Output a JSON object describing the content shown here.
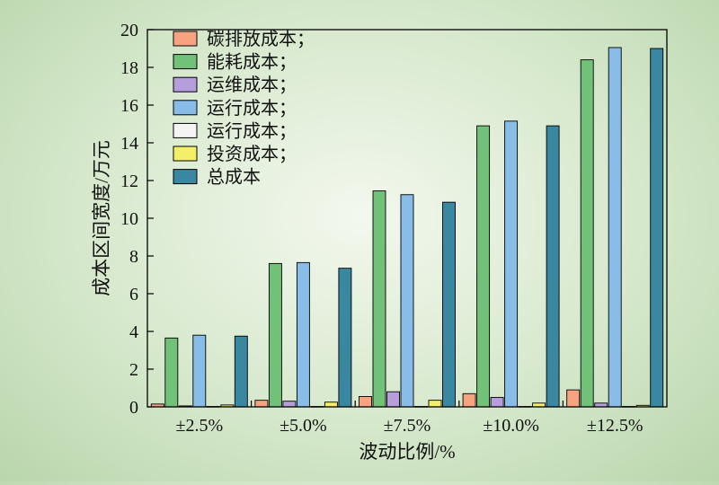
{
  "chart_data": {
    "type": "bar",
    "xlabel": "波动比例/%",
    "ylabel": "成本区间宽度/万元",
    "ylim": [
      0,
      20
    ],
    "yticks": [
      0,
      2,
      4,
      6,
      8,
      10,
      12,
      14,
      16,
      18,
      20
    ],
    "grid": false,
    "legend_position": "top-left",
    "categories": [
      "±2.5%",
      "±5.0%",
      "±7.5%",
      "±10.0%",
      "±12.5%"
    ],
    "series": [
      {
        "name": "碳排放成本；",
        "color": "#f7a37f",
        "values": [
          0.15,
          0.35,
          0.55,
          0.7,
          0.9
        ]
      },
      {
        "name": "能耗成本；",
        "color": "#72c179",
        "values": [
          3.65,
          7.6,
          11.45,
          14.9,
          18.4
        ]
      },
      {
        "name": "运维成本；",
        "color": "#b69ddc",
        "values": [
          0.05,
          0.3,
          0.8,
          0.5,
          0.2
        ]
      },
      {
        "name": "运行成本；",
        "color": "#88bde8",
        "values": [
          3.8,
          7.65,
          11.25,
          15.15,
          19.05
        ]
      },
      {
        "name": "运行成本；",
        "color": "#f4f4f4",
        "values": [
          0.02,
          0.02,
          0.02,
          0.02,
          0.02
        ]
      },
      {
        "name": "投资成本；",
        "color": "#f3ef69",
        "values": [
          0.1,
          0.25,
          0.35,
          0.2,
          0.08
        ]
      },
      {
        "name": "总成本",
        "color": "#3a87a2",
        "values": [
          3.75,
          7.35,
          10.85,
          14.9,
          19.0
        ]
      }
    ]
  }
}
